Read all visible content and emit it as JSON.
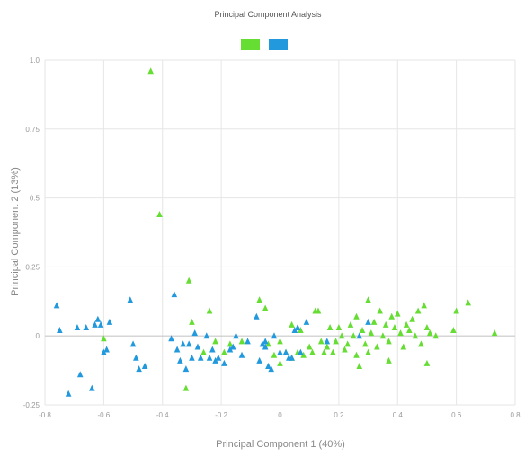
{
  "chart_data": {
    "type": "scatter",
    "title": "Principal Component Analysis",
    "xlabel": "Principal Component 1 (40%)",
    "ylabel": "Principal Component 2 (13%)",
    "xlim": [
      -0.8,
      0.8
    ],
    "ylim": [
      -0.25,
      1.0
    ],
    "x_ticks": [
      -0.8,
      -0.6,
      -0.4,
      -0.2,
      0,
      0.2,
      0.4,
      0.6,
      0.8
    ],
    "y_ticks": [
      -0.25,
      0,
      0.25,
      0.5,
      0.75,
      1.0
    ],
    "x_tick_labels": [
      "-0.8",
      "-0.6",
      "-0.4",
      "-0.2",
      "0",
      "0.2",
      "0.4",
      "0.6",
      "0.8"
    ],
    "y_tick_labels": [
      "-0.25",
      "0",
      "0.25",
      "0.5",
      "0.75",
      "1.0"
    ],
    "grid": true,
    "legend_position": "top-center",
    "marker": "triangle",
    "series": [
      {
        "name": "",
        "color": "#66dd33",
        "points": [
          [
            -0.44,
            0.96
          ],
          [
            -0.41,
            0.44
          ],
          [
            -0.31,
            0.2
          ],
          [
            -0.3,
            0.05
          ],
          [
            -0.32,
            -0.19
          ],
          [
            -0.24,
            0.09
          ],
          [
            -0.6,
            -0.01
          ],
          [
            -0.22,
            -0.02
          ],
          [
            -0.19,
            -0.06
          ],
          [
            -0.17,
            -0.03
          ],
          [
            -0.13,
            -0.02
          ],
          [
            -0.07,
            0.13
          ],
          [
            -0.05,
            0.1
          ],
          [
            -0.04,
            -0.03
          ],
          [
            -0.02,
            -0.07
          ],
          [
            0.0,
            -0.1
          ],
          [
            0.02,
            -0.06
          ],
          [
            0.04,
            -0.08
          ],
          [
            0.06,
            -0.06
          ],
          [
            0.08,
            -0.07
          ],
          [
            0.1,
            -0.04
          ],
          [
            0.11,
            -0.06
          ],
          [
            0.12,
            0.09
          ],
          [
            0.13,
            0.09
          ],
          [
            0.14,
            -0.02
          ],
          [
            0.16,
            -0.04
          ],
          [
            0.18,
            -0.06
          ],
          [
            0.19,
            -0.02
          ],
          [
            0.2,
            0.03
          ],
          [
            0.21,
            0.0
          ],
          [
            0.22,
            -0.05
          ],
          [
            0.23,
            -0.03
          ],
          [
            0.24,
            0.04
          ],
          [
            0.25,
            0.0
          ],
          [
            0.26,
            -0.07
          ],
          [
            0.27,
            -0.11
          ],
          [
            0.28,
            0.02
          ],
          [
            0.29,
            -0.03
          ],
          [
            0.3,
            -0.06
          ],
          [
            0.31,
            0.01
          ],
          [
            0.32,
            0.05
          ],
          [
            0.33,
            -0.04
          ],
          [
            0.34,
            0.09
          ],
          [
            0.35,
            0.0
          ],
          [
            0.36,
            0.04
          ],
          [
            0.37,
            -0.02
          ],
          [
            0.38,
            0.07
          ],
          [
            0.39,
            0.03
          ],
          [
            0.4,
            0.08
          ],
          [
            0.41,
            0.01
          ],
          [
            0.42,
            -0.04
          ],
          [
            0.43,
            0.04
          ],
          [
            0.44,
            0.02
          ],
          [
            0.45,
            0.06
          ],
          [
            0.46,
            0.0
          ],
          [
            0.47,
            0.09
          ],
          [
            0.48,
            -0.03
          ],
          [
            0.49,
            0.11
          ],
          [
            0.5,
            0.03
          ],
          [
            0.51,
            0.01
          ],
          [
            0.53,
            0.0
          ],
          [
            0.59,
            0.02
          ],
          [
            0.6,
            0.09
          ],
          [
            0.64,
            0.12
          ],
          [
            0.73,
            0.01
          ],
          [
            0.3,
            0.13
          ],
          [
            0.17,
            0.03
          ],
          [
            -0.0,
            -0.02
          ],
          [
            -0.26,
            -0.06
          ],
          [
            0.04,
            0.04
          ],
          [
            0.07,
            0.02
          ],
          [
            0.15,
            -0.06
          ],
          [
            0.37,
            -0.09
          ],
          [
            0.5,
            -0.1
          ],
          [
            0.26,
            0.07
          ]
        ]
      },
      {
        "name": "",
        "color": "#2299dd",
        "points": [
          [
            -0.76,
            0.11
          ],
          [
            -0.75,
            0.02
          ],
          [
            -0.72,
            -0.21
          ],
          [
            -0.69,
            0.03
          ],
          [
            -0.68,
            -0.14
          ],
          [
            -0.66,
            0.03
          ],
          [
            -0.64,
            -0.19
          ],
          [
            -0.63,
            0.04
          ],
          [
            -0.62,
            0.06
          ],
          [
            -0.61,
            0.04
          ],
          [
            -0.6,
            -0.06
          ],
          [
            -0.59,
            -0.05
          ],
          [
            -0.58,
            0.05
          ],
          [
            -0.51,
            0.13
          ],
          [
            -0.5,
            -0.03
          ],
          [
            -0.49,
            -0.08
          ],
          [
            -0.48,
            -0.12
          ],
          [
            -0.46,
            -0.11
          ],
          [
            -0.37,
            -0.01
          ],
          [
            -0.36,
            0.15
          ],
          [
            -0.35,
            -0.05
          ],
          [
            -0.34,
            -0.09
          ],
          [
            -0.33,
            -0.03
          ],
          [
            -0.32,
            -0.12
          ],
          [
            -0.31,
            -0.03
          ],
          [
            -0.3,
            -0.08
          ],
          [
            -0.29,
            0.01
          ],
          [
            -0.28,
            -0.04
          ],
          [
            -0.27,
            -0.08
          ],
          [
            -0.25,
            0.0
          ],
          [
            -0.24,
            -0.08
          ],
          [
            -0.22,
            -0.09
          ],
          [
            -0.21,
            -0.08
          ],
          [
            -0.19,
            -0.1
          ],
          [
            -0.17,
            -0.05
          ],
          [
            -0.16,
            -0.04
          ],
          [
            -0.15,
            0.0
          ],
          [
            -0.13,
            -0.07
          ],
          [
            -0.11,
            -0.02
          ],
          [
            -0.08,
            0.07
          ],
          [
            -0.07,
            -0.09
          ],
          [
            -0.06,
            -0.03
          ],
          [
            -0.05,
            -0.04
          ],
          [
            -0.04,
            -0.11
          ],
          [
            -0.03,
            -0.12
          ],
          [
            -0.02,
            0.0
          ],
          [
            -0.0,
            -0.06
          ],
          [
            0.02,
            -0.06
          ],
          [
            0.03,
            -0.08
          ],
          [
            0.04,
            -0.08
          ],
          [
            0.05,
            0.02
          ],
          [
            0.06,
            0.03
          ],
          [
            0.07,
            -0.06
          ],
          [
            0.09,
            0.05
          ],
          [
            0.16,
            -0.02
          ],
          [
            0.27,
            0.0
          ],
          [
            0.3,
            0.05
          ],
          [
            -0.23,
            -0.05
          ],
          [
            -0.05,
            -0.02
          ]
        ]
      }
    ]
  }
}
